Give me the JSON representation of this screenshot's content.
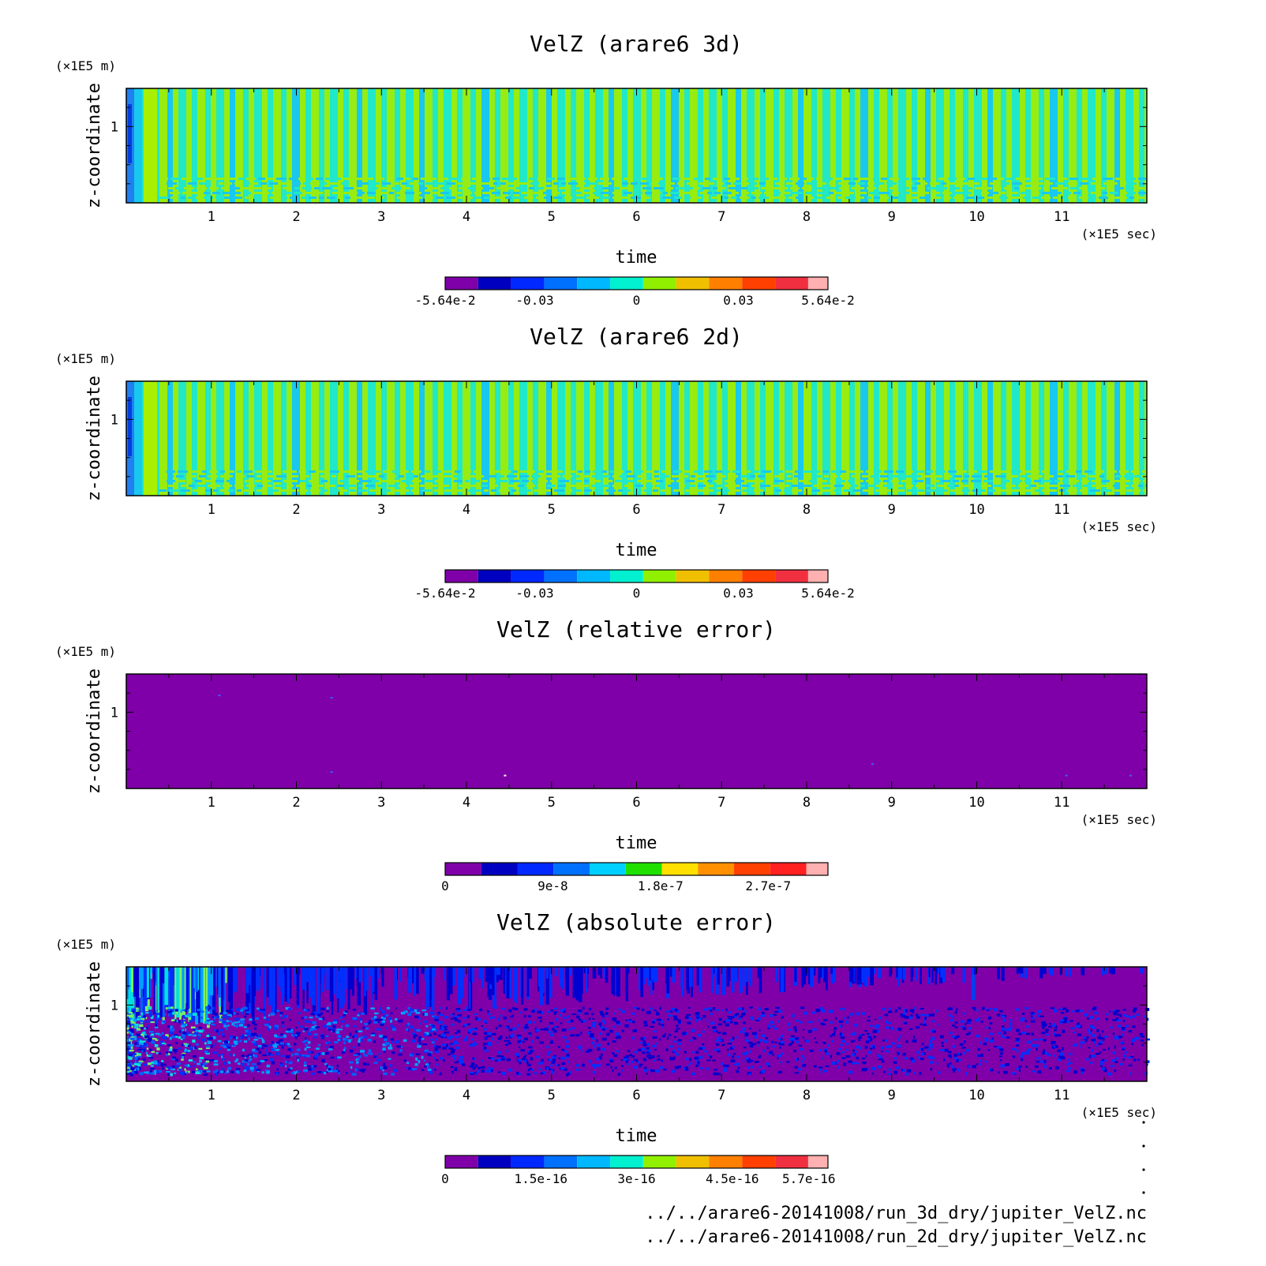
{
  "panels": [
    {
      "title": "VelZ (arare6 3d)",
      "field": "stripes",
      "colorbar": {
        "colors": [
          "#7f00a8",
          "#0000c0",
          "#0028ff",
          "#0070ff",
          "#00b8ff",
          "#00f0d0",
          "#90f000",
          "#f0c000",
          "#ff8000",
          "#ff4000",
          "#f03040",
          "#ffb0b0"
        ],
        "labels": [
          "-5.64e-2",
          "-0.03",
          "0",
          "0.03",
          "5.64e-2"
        ],
        "label_values": [
          -0.0564,
          -0.03,
          0,
          0.03,
          0.0564
        ],
        "range": [
          -0.0564,
          0.0564
        ]
      }
    },
    {
      "title": "VelZ (arare6 2d)",
      "field": "stripes",
      "colorbar": {
        "colors": [
          "#7f00a8",
          "#0000c0",
          "#0028ff",
          "#0070ff",
          "#00b8ff",
          "#00f0d0",
          "#90f000",
          "#f0c000",
          "#ff8000",
          "#ff4000",
          "#f03040",
          "#ffb0b0"
        ],
        "labels": [
          "-5.64e-2",
          "-0.03",
          "0",
          "0.03",
          "5.64e-2"
        ],
        "label_values": [
          -0.0564,
          -0.03,
          0,
          0.03,
          0.0564
        ],
        "range": [
          -0.0564,
          0.0564
        ]
      }
    },
    {
      "title": "VelZ (relative error)",
      "field": "flat",
      "colorbar": {
        "colors": [
          "#7f00a8",
          "#0000c0",
          "#0028ff",
          "#0070ff",
          "#00d0ff",
          "#20e000",
          "#ffe000",
          "#ff9000",
          "#ff4000",
          "#ff2020",
          "#ffb0b0"
        ],
        "labels": [
          "0",
          "9e-8",
          "1.8e-7",
          "2.7e-7"
        ],
        "label_values": [
          0,
          9e-08,
          1.8e-07,
          2.7e-07
        ],
        "range": [
          0,
          3.2e-07
        ]
      }
    },
    {
      "title": "VelZ (absolute error)",
      "field": "speckle",
      "colorbar": {
        "colors": [
          "#7f00a8",
          "#0000c0",
          "#0028ff",
          "#0070ff",
          "#00b8ff",
          "#00f0d0",
          "#90f000",
          "#f0c000",
          "#ff8000",
          "#ff4000",
          "#f03040",
          "#ffb0b0"
        ],
        "labels": [
          "0",
          "1.5e-16",
          "3e-16",
          "4.5e-16",
          "5.7e-16"
        ],
        "label_values": [
          0,
          1.5e-16,
          3e-16,
          4.5e-16,
          5.7e-16
        ],
        "range": [
          0,
          6e-16
        ]
      }
    }
  ],
  "chart_data": [
    {
      "type": "heatmap",
      "title": "VelZ (arare6 3d)",
      "xlabel": "time",
      "x_unit": "(×1E5 sec)",
      "ylabel": "z-coordinate",
      "y_unit": "(×1E5 m)",
      "xlim": [
        0,
        12
      ],
      "ylim": [
        0,
        1.5
      ],
      "x_ticks": [
        1,
        2,
        3,
        4,
        5,
        6,
        7,
        8,
        9,
        10,
        11
      ],
      "y_ticks": [
        1
      ],
      "colorbar_range": [
        -0.0564,
        0.0564
      ],
      "colorbar_labels": [
        "-5.64e-2",
        "-0.03",
        "0",
        "0.03",
        "5.64e-2"
      ]
    },
    {
      "type": "heatmap",
      "title": "VelZ (arare6 2d)",
      "xlabel": "time",
      "x_unit": "(×1E5 sec)",
      "ylabel": "z-coordinate",
      "y_unit": "(×1E5 m)",
      "xlim": [
        0,
        12
      ],
      "ylim": [
        0,
        1.5
      ],
      "x_ticks": [
        1,
        2,
        3,
        4,
        5,
        6,
        7,
        8,
        9,
        10,
        11
      ],
      "y_ticks": [
        1
      ],
      "colorbar_range": [
        -0.0564,
        0.0564
      ],
      "colorbar_labels": [
        "-5.64e-2",
        "-0.03",
        "0",
        "0.03",
        "5.64e-2"
      ]
    },
    {
      "type": "heatmap",
      "title": "VelZ (relative error)",
      "xlabel": "time",
      "x_unit": "(×1E5 sec)",
      "ylabel": "z-coordinate",
      "y_unit": "(×1E5 m)",
      "xlim": [
        0,
        12
      ],
      "ylim": [
        0,
        1.5
      ],
      "x_ticks": [
        1,
        2,
        3,
        4,
        5,
        6,
        7,
        8,
        9,
        10,
        11
      ],
      "y_ticks": [
        1
      ],
      "colorbar_range": [
        0,
        3.2e-07
      ],
      "colorbar_labels": [
        "0",
        "9e-8",
        "1.8e-7",
        "2.7e-7"
      ]
    },
    {
      "type": "heatmap",
      "title": "VelZ (absolute error)",
      "xlabel": "time",
      "x_unit": "(×1E5 sec)",
      "ylabel": "z-coordinate",
      "y_unit": "(×1E5 m)",
      "xlim": [
        0,
        12
      ],
      "ylim": [
        0,
        1.5
      ],
      "x_ticks": [
        1,
        2,
        3,
        4,
        5,
        6,
        7,
        8,
        9,
        10,
        11
      ],
      "y_ticks": [
        1
      ],
      "colorbar_range": [
        0,
        6e-16
      ],
      "colorbar_labels": [
        "0",
        "1.5e-16",
        "3e-16",
        "4.5e-16",
        "5.7e-16"
      ]
    }
  ],
  "footer": {
    "files": [
      "../../arare6-20141008/run_3d_dry/jupiter_VelZ.nc",
      "../../arare6-20141008/run_2d_dry/jupiter_VelZ.nc"
    ]
  }
}
